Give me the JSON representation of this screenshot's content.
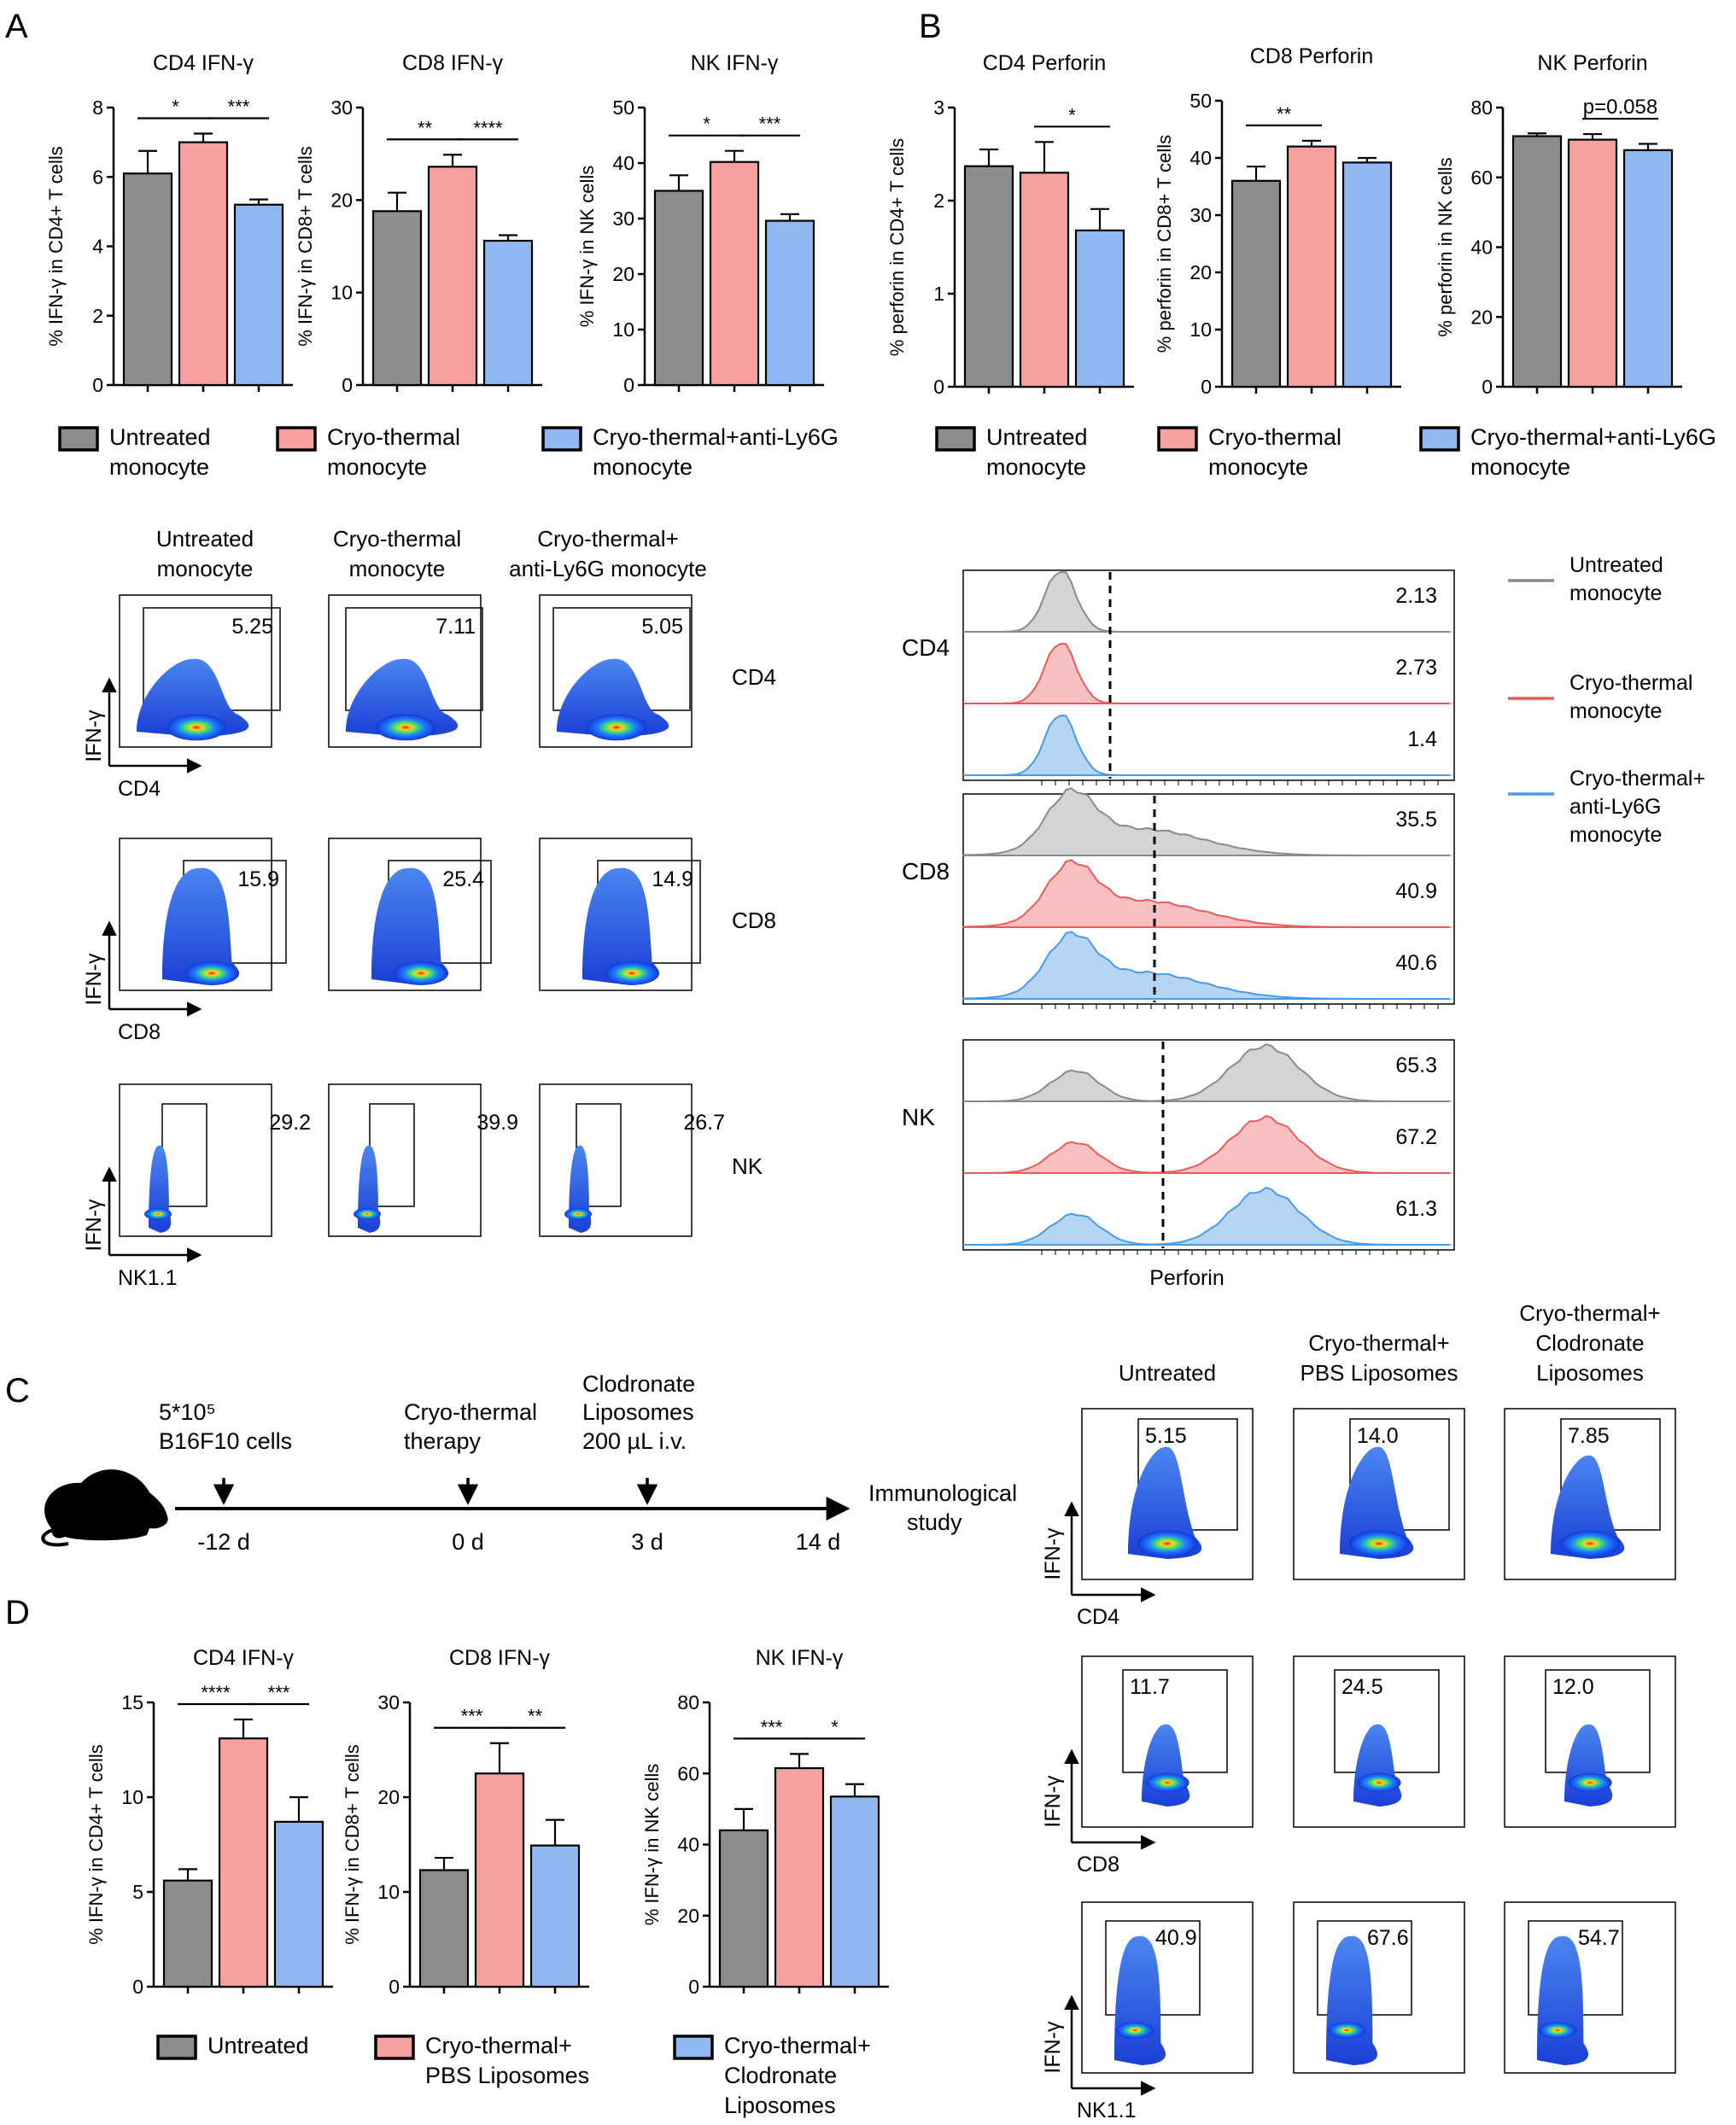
{
  "colors": {
    "gray": "#8c8c8c",
    "pink": "#f7a0a0",
    "blue": "#8fb8f0",
    "gray_line": "#8a8a8a",
    "pink_line": "#e85c5c",
    "blue_line": "#4a9be6",
    "gray_fill": "#d4d4d4",
    "pink_fill": "#f8c0c0",
    "blue_fill": "#b6d5f5"
  },
  "panels": {
    "A": "A",
    "B": "B",
    "C": "C",
    "D": "D"
  },
  "legends": {
    "AB": [
      {
        "line1": "Untreated",
        "line2": "monocyte",
        "color": "#8c8c8c"
      },
      {
        "line1": "Cryo-thermal",
        "line2": "monocyte",
        "color": "#f7a0a0"
      },
      {
        "line1": "Cryo-thermal+anti-Ly6G",
        "line2": "monocyte",
        "color": "#8fb8f0"
      }
    ],
    "D": [
      {
        "line1": "Untreated",
        "line2": "",
        "line3": "",
        "color": "#8c8c8c"
      },
      {
        "line1": "Cryo-thermal+",
        "line2": "PBS Liposomes",
        "line3": "",
        "color": "#f7a0a0"
      },
      {
        "line1": "Cryo-thermal+",
        "line2": "Clodronate",
        "line3": "Liposomes",
        "color": "#8fb8f0"
      }
    ]
  },
  "chart_data": [
    {
      "id": "A1",
      "type": "bar",
      "title": "CD4 IFN-γ",
      "ylabel": "% IFN-γ in CD4+ T cells",
      "ylim": [
        0,
        8
      ],
      "yticks": [
        0,
        2,
        4,
        6,
        8
      ],
      "categories": [
        "Untreated monocyte",
        "Cryo-thermal monocyte",
        "Cryo-thermal+anti-Ly6G monocyte"
      ],
      "values": [
        6.1,
        7.0,
        5.2
      ],
      "errors": [
        0.65,
        0.25,
        0.15
      ],
      "significance": [
        {
          "from": 0,
          "to": 1,
          "label": "*"
        },
        {
          "from": 1,
          "to": 2,
          "label": "***"
        }
      ]
    },
    {
      "id": "A2",
      "type": "bar",
      "title": "CD8 IFN-γ",
      "ylabel": "% IFN-γ in CD8+ T cells",
      "ylim": [
        0,
        30
      ],
      "yticks": [
        0,
        10,
        20,
        30
      ],
      "categories": [
        "Untreated monocyte",
        "Cryo-thermal monocyte",
        "Cryo-thermal+anti-Ly6G monocyte"
      ],
      "values": [
        18.8,
        23.6,
        15.6
      ],
      "errors": [
        2.0,
        1.3,
        0.6
      ],
      "significance": [
        {
          "from": 0,
          "to": 1,
          "label": "**"
        },
        {
          "from": 1,
          "to": 2,
          "label": "****"
        }
      ]
    },
    {
      "id": "A3",
      "type": "bar",
      "title": "NK IFN-γ",
      "ylabel": "% IFN-γ in NK cells",
      "ylim": [
        0,
        50
      ],
      "yticks": [
        0,
        10,
        20,
        30,
        40,
        50
      ],
      "categories": [
        "Untreated monocyte",
        "Cryo-thermal monocyte",
        "Cryo-thermal+anti-Ly6G monocyte"
      ],
      "values": [
        35.0,
        40.2,
        29.6
      ],
      "errors": [
        2.8,
        2.0,
        1.2
      ],
      "significance": [
        {
          "from": 0,
          "to": 1,
          "label": "*"
        },
        {
          "from": 1,
          "to": 2,
          "label": "***"
        }
      ]
    },
    {
      "id": "B1",
      "type": "bar",
      "title": "CD4 Perforin",
      "ylabel": "% perforin in CD4+ T cells",
      "ylim": [
        0,
        3
      ],
      "yticks": [
        0,
        1,
        2,
        3
      ],
      "categories": [
        "Untreated monocyte",
        "Cryo-thermal monocyte",
        "Cryo-thermal+anti-Ly6G monocyte"
      ],
      "values": [
        2.37,
        2.3,
        1.68
      ],
      "errors": [
        0.18,
        0.33,
        0.23
      ],
      "significance": [
        {
          "from": 1,
          "to": 2,
          "label": "*"
        }
      ]
    },
    {
      "id": "B2",
      "type": "bar",
      "title": "CD8 Perforin",
      "ylabel": "% perforin in CD8+ T cells",
      "ylim": [
        0,
        50
      ],
      "yticks": [
        0,
        10,
        20,
        30,
        40,
        50
      ],
      "categories": [
        "Untreated monocyte",
        "Cryo-thermal monocyte",
        "Cryo-thermal+anti-Ly6G monocyte"
      ],
      "values": [
        36.0,
        42.0,
        39.2
      ],
      "errors": [
        2.5,
        1.0,
        0.8
      ],
      "significance": [
        {
          "from": 0,
          "to": 1,
          "label": "**"
        }
      ]
    },
    {
      "id": "B3",
      "type": "bar",
      "title": "NK Perforin",
      "ylabel": "% perforin in NK cells",
      "ylim": [
        0,
        80
      ],
      "yticks": [
        0,
        20,
        40,
        60,
        80
      ],
      "categories": [
        "Untreated monocyte",
        "Cryo-thermal monocyte",
        "Cryo-thermal+anti-Ly6G monocyte"
      ],
      "values": [
        71.8,
        70.8,
        67.8
      ],
      "errors": [
        0.8,
        1.6,
        1.8
      ],
      "significance": [
        {
          "from": 1,
          "to": 2,
          "label": "p=0.058"
        }
      ]
    },
    {
      "id": "D1",
      "type": "bar",
      "title": "CD4 IFN-γ",
      "ylabel": "% IFN-γ in CD4+ T cells",
      "ylim": [
        0,
        15
      ],
      "yticks": [
        0,
        5,
        10,
        15
      ],
      "categories": [
        "Untreated",
        "Cryo-thermal+ PBS Liposomes",
        "Cryo-thermal+ Clodronate Liposomes"
      ],
      "values": [
        5.6,
        13.1,
        8.7
      ],
      "errors": [
        0.6,
        1.0,
        1.3
      ],
      "significance": [
        {
          "from": 0,
          "to": 1,
          "label": "****"
        },
        {
          "from": 1,
          "to": 2,
          "label": "***"
        }
      ]
    },
    {
      "id": "D2",
      "type": "bar",
      "title": "CD8 IFN-γ",
      "ylabel": "% IFN-γ in CD8+ T cells",
      "ylim": [
        0,
        30
      ],
      "yticks": [
        0,
        10,
        20,
        30
      ],
      "categories": [
        "Untreated",
        "Cryo-thermal+ PBS Liposomes",
        "Cryo-thermal+ Clodronate Liposomes"
      ],
      "values": [
        12.3,
        22.5,
        14.9
      ],
      "errors": [
        1.3,
        3.2,
        2.7
      ],
      "significance": [
        {
          "from": 0,
          "to": 1,
          "label": "***"
        },
        {
          "from": 1,
          "to": 2,
          "label": "**"
        }
      ]
    },
    {
      "id": "D3",
      "type": "bar",
      "title": "NK IFN-γ",
      "ylabel": "% IFN-γ in NK cells",
      "ylim": [
        0,
        80
      ],
      "yticks": [
        0,
        20,
        40,
        60,
        80
      ],
      "categories": [
        "Untreated",
        "Cryo-thermal+ PBS Liposomes",
        "Cryo-thermal+ Clodronate Liposomes"
      ],
      "values": [
        44.0,
        61.5,
        53.5
      ],
      "errors": [
        6.0,
        4.0,
        3.5
      ],
      "significance": [
        {
          "from": 0,
          "to": 1,
          "label": "***"
        },
        {
          "from": 1,
          "to": 2,
          "label": "*"
        }
      ]
    }
  ],
  "flow_A": {
    "columns": [
      {
        "line1": "Untreated",
        "line2": "monocyte"
      },
      {
        "line1": "Cryo-thermal",
        "line2": "monocyte"
      },
      {
        "line1": "Cryo-thermal+",
        "line2": "anti-Ly6G monocyte"
      }
    ],
    "rows": [
      {
        "label": "CD4",
        "xaxis": "CD4",
        "yaxis": "IFN-γ",
        "values": [
          "5.25",
          "7.11",
          "5.05"
        ]
      },
      {
        "label": "CD8",
        "xaxis": "CD8",
        "yaxis": "IFN-γ",
        "values": [
          "15.9",
          "25.4",
          "14.9"
        ]
      },
      {
        "label": "NK",
        "xaxis": "NK1.1",
        "yaxis": "IFN-γ",
        "values": [
          "29.2",
          "39.9",
          "26.7"
        ]
      }
    ]
  },
  "histograms_B": {
    "legend": [
      {
        "line1": "Untreated",
        "line2": "monocyte",
        "line3": "",
        "color": "#8a8a8a"
      },
      {
        "line1": "Cryo-thermal",
        "line2": "monocyte",
        "line3": "",
        "color": "#e85c5c"
      },
      {
        "line1": "Cryo-thermal+",
        "line2": "anti-Ly6G",
        "line3": "monocyte",
        "color": "#4a9be6"
      }
    ],
    "xlabel": "Perforin",
    "groups": [
      {
        "label": "CD4",
        "values": [
          "2.13",
          "2.73",
          "1.4"
        ]
      },
      {
        "label": "CD8",
        "values": [
          "35.5",
          "40.9",
          "40.6"
        ]
      },
      {
        "label": "NK",
        "values": [
          "65.3",
          "67.2",
          "61.3"
        ]
      }
    ]
  },
  "timeline_C": {
    "events": [
      {
        "top": "5*10⁵",
        "bottom": "B16F10 cells",
        "third": "",
        "day": "-12 d"
      },
      {
        "top": "Cryo-thermal",
        "bottom": "therapy",
        "third": "",
        "day": "0 d"
      },
      {
        "top": "Clodronate",
        "bottom": "Liposomes",
        "third": "200 µL  i.v.",
        "day": "3 d"
      },
      {
        "top": "",
        "bottom": "",
        "third": "",
        "day": "14 d"
      }
    ],
    "end_label_1": "Immunological",
    "end_label_2": "study"
  },
  "flow_C": {
    "columns": [
      {
        "line1": "",
        "line2": "",
        "line3": "Untreated"
      },
      {
        "line1": "",
        "line2": "Cryo-thermal+",
        "line3": "PBS Liposomes"
      },
      {
        "line1": "Cryo-thermal+",
        "line2": "Clodronate",
        "line3": "Liposomes"
      }
    ],
    "rows": [
      {
        "xaxis": "CD4",
        "yaxis": "IFN-γ",
        "values": [
          "5.15",
          "14.0",
          "7.85"
        ]
      },
      {
        "xaxis": "CD8",
        "yaxis": "IFN-γ",
        "values": [
          "11.7",
          "24.5",
          "12.0"
        ]
      },
      {
        "xaxis": "NK1.1",
        "yaxis": "IFN-γ",
        "values": [
          "40.9",
          "67.6",
          "54.7"
        ]
      }
    ]
  }
}
